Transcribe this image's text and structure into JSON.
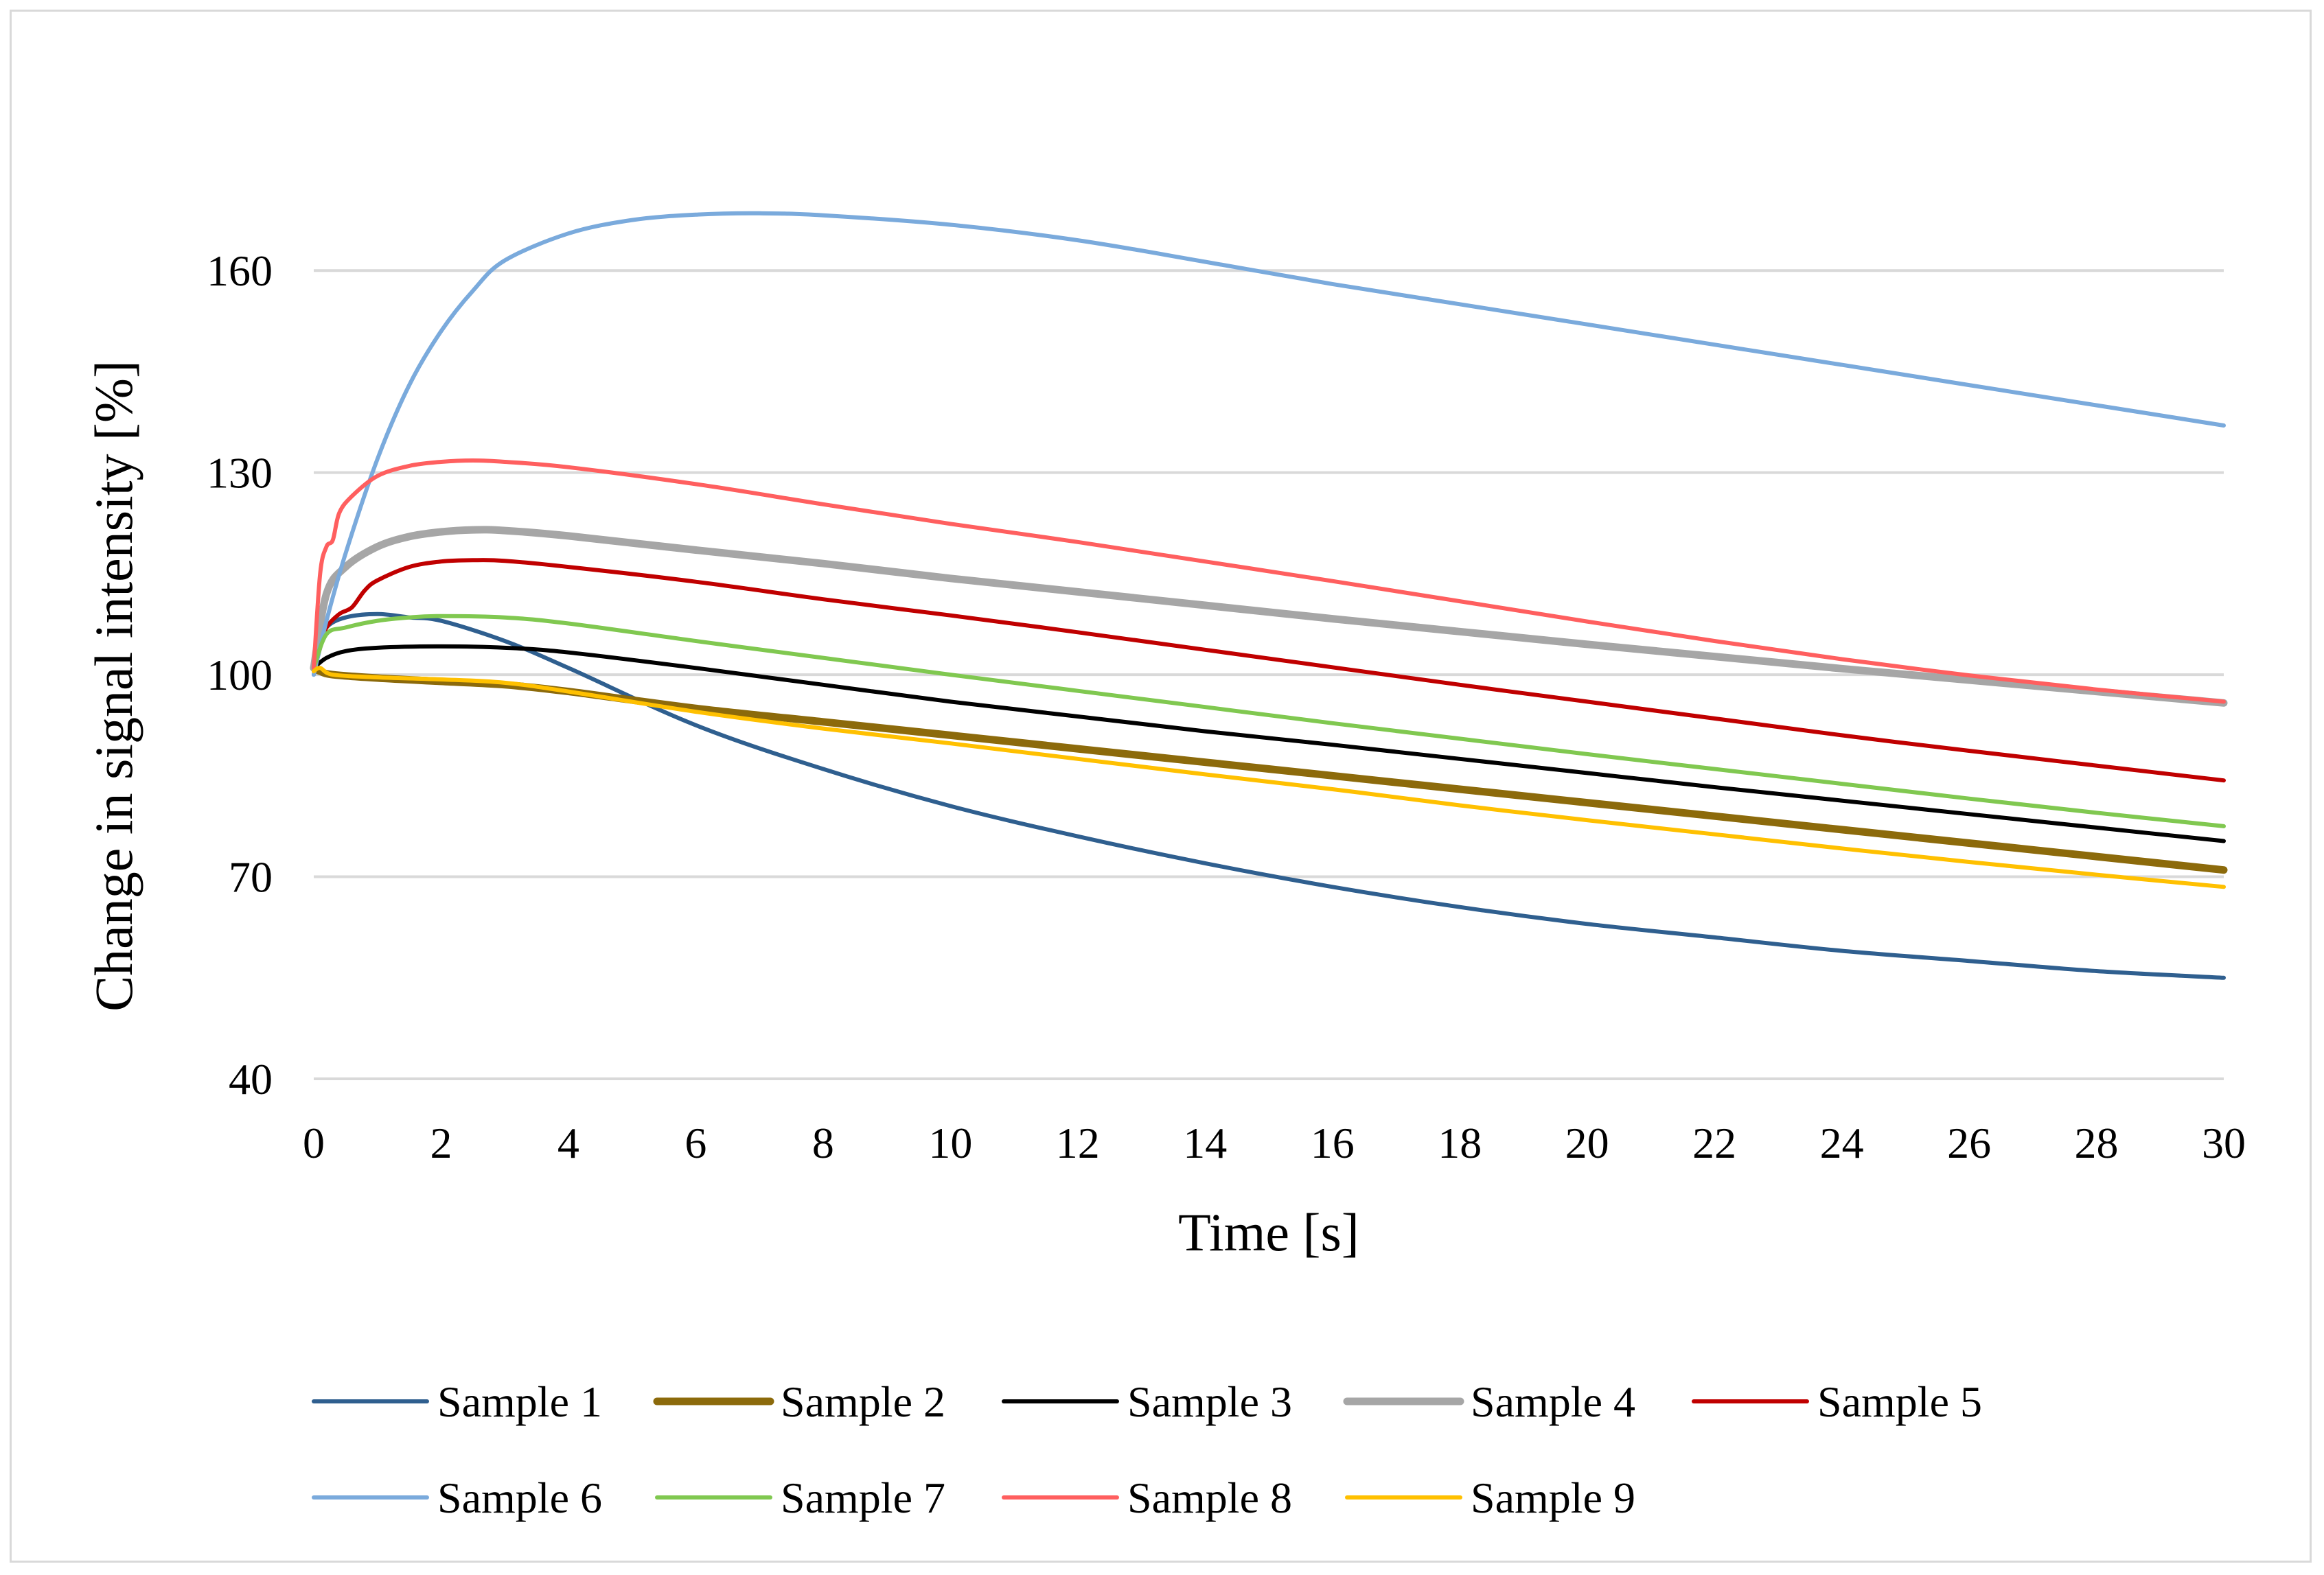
{
  "chart_data": {
    "type": "line",
    "title": "",
    "xlabel": "Time [s]",
    "ylabel": "Change in signal intensity [%]",
    "xlim": [
      0,
      30
    ],
    "ylim": [
      40,
      175
    ],
    "x_ticks": [
      0,
      2,
      4,
      6,
      8,
      10,
      12,
      14,
      16,
      18,
      20,
      22,
      24,
      26,
      28,
      30
    ],
    "y_ticks": [
      40,
      70,
      100,
      130,
      160
    ],
    "grid": "horizontal",
    "legend_position": "bottom",
    "series": [
      {
        "name": "Sample 1",
        "color": "#2f5f8f",
        "x": [
          0,
          0.1,
          0.2,
          0.5,
          1,
          1.5,
          2,
          3,
          4,
          6,
          8,
          10,
          12,
          14,
          16,
          18,
          20,
          22,
          24,
          26,
          28,
          30
        ],
        "y": [
          100,
          104,
          107,
          108.5,
          109,
          108.5,
          108,
          105,
          101,
          92.5,
          86,
          80.5,
          76,
          72,
          68.5,
          65.5,
          63,
          61,
          59,
          57.5,
          56,
          55
        ]
      },
      {
        "name": "Sample 2",
        "color": "#8c6a0b",
        "x": [
          0,
          0.1,
          0.3,
          1,
          2,
          3,
          4,
          6,
          8,
          10,
          12,
          14,
          16,
          18,
          20,
          22,
          24,
          26,
          28,
          30
        ],
        "y": [
          101,
          100.5,
          100,
          99.5,
          99,
          98.5,
          97.5,
          95,
          93,
          91,
          89,
          87,
          85,
          83,
          81,
          79,
          77,
          75,
          73,
          71
        ]
      },
      {
        "name": "Sample 3",
        "color": "#000000",
        "x": [
          0,
          0.2,
          0.5,
          1,
          2,
          3,
          4,
          6,
          8,
          10,
          12,
          14,
          16,
          18,
          20,
          22,
          24,
          26,
          28,
          30
        ],
        "y": [
          101,
          102.5,
          103.5,
          104,
          104.2,
          104,
          103.3,
          101,
          98.5,
          96,
          93.8,
          91.6,
          89.6,
          87.5,
          85.4,
          83.3,
          81.3,
          79.3,
          77.3,
          75.3
        ]
      },
      {
        "name": "Sample 4",
        "color": "#a6a6a6",
        "x": [
          0,
          0.2,
          0.5,
          1,
          1.5,
          2,
          2.5,
          3,
          4,
          6,
          8,
          10,
          12,
          14,
          16,
          18,
          20,
          22,
          24,
          26,
          28,
          30
        ],
        "y": [
          101,
          112,
          116,
          119,
          120.5,
          121.2,
          121.5,
          121.4,
          120.6,
          118.5,
          116.5,
          114.3,
          112.3,
          110.3,
          108.3,
          106.4,
          104.5,
          102.7,
          100.9,
          99.2,
          97.5,
          95.8
        ]
      },
      {
        "name": "Sample 5",
        "color": "#c00000",
        "x": [
          0,
          0.1,
          0.2,
          0.4,
          0.6,
          0.8,
          1,
          1.5,
          2,
          2.5,
          3,
          4,
          6,
          8,
          10,
          12,
          14,
          16,
          18,
          20,
          22,
          24,
          26,
          28,
          30
        ],
        "y": [
          101,
          104,
          107,
          109,
          110,
          112.5,
          114,
          116,
          116.8,
          117,
          116.9,
          116,
          113.8,
          111.2,
          108.8,
          106.3,
          103.7,
          101.1,
          98.5,
          96,
          93.5,
          91,
          88.7,
          86.5,
          84.3
        ]
      },
      {
        "name": "Sample 6",
        "color": "#7aaadc",
        "x": [
          0,
          0.2,
          0.5,
          1,
          1.5,
          2,
          2.5,
          3,
          4,
          5,
          6,
          7,
          8,
          10,
          12,
          14,
          16,
          18,
          20,
          22,
          24,
          26,
          28,
          30
        ],
        "y": [
          100,
          108,
          118,
          132,
          143,
          151,
          157,
          161.5,
          165.5,
          167.5,
          168.3,
          168.5,
          168.2,
          166.8,
          164.5,
          161.3,
          158,
          155,
          152,
          149,
          146,
          143,
          140,
          137
        ]
      },
      {
        "name": "Sample 7",
        "color": "#80c850",
        "x": [
          0,
          0.2,
          0.5,
          1,
          1.5,
          2,
          3,
          4,
          6,
          8,
          10,
          12,
          14,
          16,
          18,
          20,
          22,
          24,
          26,
          28,
          30
        ],
        "y": [
          101,
          106,
          107,
          108,
          108.5,
          108.7,
          108.5,
          107.6,
          105,
          102.5,
          100,
          97.6,
          95.2,
          92.8,
          90.5,
          88.2,
          86,
          83.8,
          81.6,
          79.5,
          77.5
        ]
      },
      {
        "name": "Sample 8",
        "color": "#ff5f5f",
        "x": [
          0,
          0.1,
          0.2,
          0.3,
          0.4,
          0.6,
          1,
          1.5,
          2,
          2.5,
          3,
          4,
          6,
          8,
          10,
          12,
          14,
          16,
          18,
          20,
          22,
          24,
          26,
          28,
          30
        ],
        "y": [
          101,
          115,
          119,
          120,
          124,
          126.5,
          129.5,
          131,
          131.6,
          131.8,
          131.6,
          130.8,
          128.3,
          125.3,
          122.4,
          119.7,
          116.8,
          113.9,
          110.9,
          107.9,
          105,
          102.3,
          99.9,
          97.8,
          96
        ]
      },
      {
        "name": "Sample 9",
        "color": "#ffc000",
        "x": [
          0,
          0.1,
          0.3,
          1,
          2,
          3,
          4,
          6,
          8,
          10,
          12,
          14,
          16,
          18,
          20,
          22,
          24,
          26,
          28,
          30
        ],
        "y": [
          100.5,
          101,
          100,
          99.6,
          99.3,
          98.8,
          97.5,
          94.5,
          92,
          89.8,
          87.5,
          85.2,
          83,
          80.6,
          78.4,
          76.3,
          74.2,
          72.2,
          70.3,
          68.5
        ]
      }
    ]
  }
}
